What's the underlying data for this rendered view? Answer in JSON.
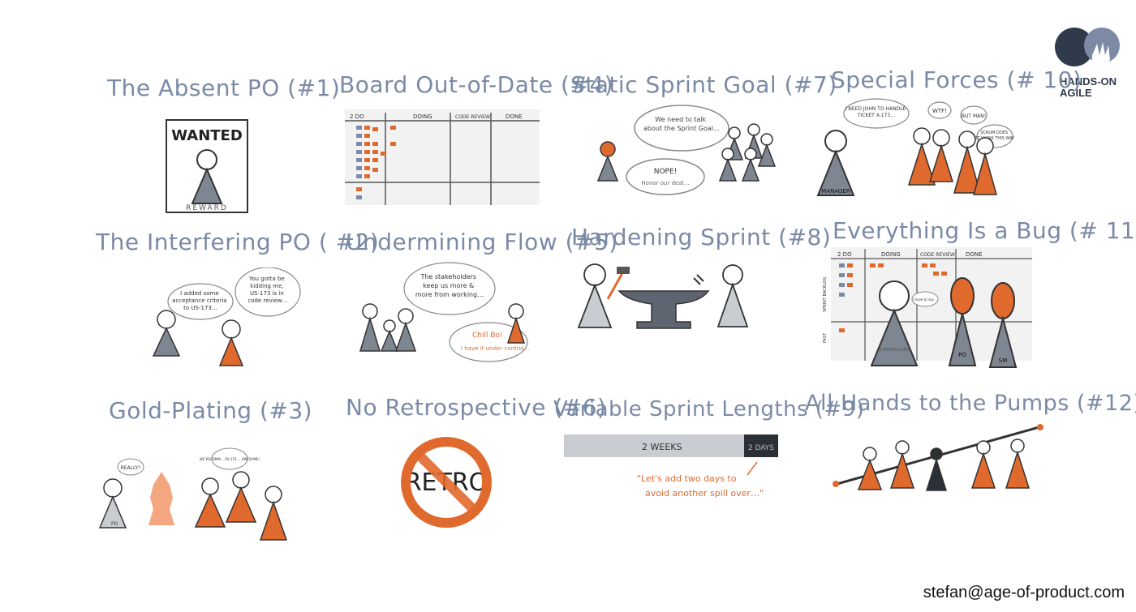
{
  "brand": {
    "name_line1": "HANDS-ON",
    "name_line2": "AGILE"
  },
  "footer": {
    "email": "stefan@age-of-product.com"
  },
  "panels": [
    {
      "title": "The Absent PO (#1)",
      "texts": {
        "wanted": "WANTED",
        "reward": "REWARD"
      }
    },
    {
      "title": "Board Out-of-Date (#4)",
      "texts": {
        "col1": "2 DO",
        "col2": "DOING",
        "col3": "CODE REVIEW",
        "col4": "DONE"
      }
    },
    {
      "title": "Static Sprint Goal (#7)",
      "texts": {
        "bubble1": "We need to talk about the Sprint Goal…",
        "bubble2_a": "NOPE!",
        "bubble2_b": "Honor our deal…"
      }
    },
    {
      "title": "Special Forces (# 10)",
      "texts": {
        "bubble1": "I NEED JOHN TO HANDLE TICKET X-173…",
        "bubble2": "WTF!",
        "bubble3": "BUT MAN!",
        "bubble4": "SCRUM DOES NOT WORK THIS WAY…",
        "label": "MANAGER"
      }
    },
    {
      "title": "The Interfering PO ( #2)",
      "texts": {
        "bubble1": "I added some acceptance criteria to US-173…",
        "bubble2": "You gotta be kidding me, US-173 is in code review…"
      }
    },
    {
      "title": "Undermining Flow (#5)",
      "texts": {
        "bubble1": "The stakeholders keep us more & more from working…",
        "bubble2_a": "Chill Bo!",
        "bubble2_b": "I have it under control…"
      }
    },
    {
      "title": "Hardening Sprint (#8)",
      "texts": {}
    },
    {
      "title": "Everything Is a Bug (# 11)",
      "texts": {
        "col1": "2 DO",
        "col2": "DOING",
        "col3": "CODE REVIEW",
        "col4": "DONE",
        "row1": "SPRINT BACKLOG",
        "row2": "FAST",
        "bubble": "I have to say…",
        "label1": "STAKEHOLDER",
        "label2": "PO",
        "label3": "SM"
      }
    },
    {
      "title": "Gold-Plating (#3)",
      "texts": {
        "bubble1": "REALLY?",
        "bubble2": "WE RECOMM... US-173 ... AWESOME!",
        "label": "PO"
      }
    },
    {
      "title": "No Retrospective (#6)",
      "texts": {
        "retro": "RETRO"
      }
    },
    {
      "title": "Variable Sprint Lengths (#9)",
      "texts": {
        "bar_main": "2 WEEKS",
        "bar_extra": "2 DAYS",
        "quote_a": "\"Let's add two days to",
        "quote_b": "avoid another spill over…\""
      }
    },
    {
      "title": "All Hands to the Pumps (#12)",
      "texts": {}
    }
  ],
  "colors": {
    "title": "#7b8aa6",
    "orange": "#e06a2e",
    "grey": "#7e8692",
    "lightgrey": "#c9ccd1",
    "dark": "#2b2f36",
    "bluegrey": "#6d7fa6"
  }
}
